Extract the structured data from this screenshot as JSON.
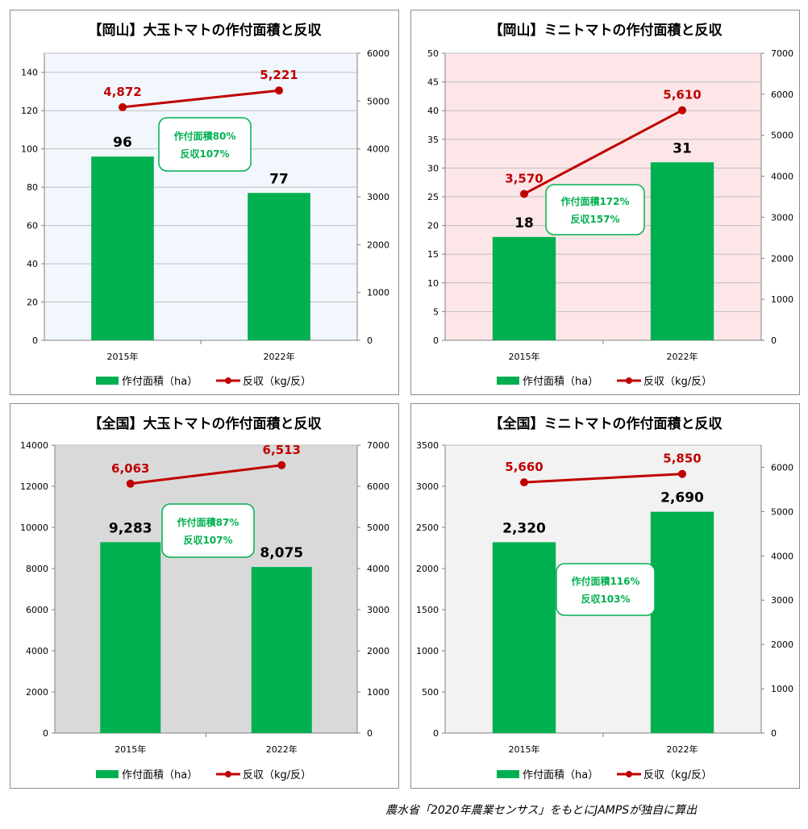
{
  "colors": {
    "bar": "#00b050",
    "line": "#c00000",
    "callout_border": "#00b050",
    "callout_text": "#00b050"
  },
  "source_note": "農水省「2020年農業センサス」をもとにJAMPSが独自に算出",
  "chart_data": [
    {
      "type": "bar+line",
      "title": "【岡山】大玉トマトの作付面積と反収",
      "categories": [
        "2015年",
        "2022年"
      ],
      "series": [
        {
          "name": "作付面積（ha）",
          "type": "bar",
          "axis": "left",
          "values": [
            96,
            77
          ],
          "labels": [
            "96",
            "77"
          ]
        },
        {
          "name": "反収（kg/反）",
          "type": "line",
          "axis": "right",
          "values": [
            4872,
            5221
          ],
          "labels": [
            "4,872",
            "5,221"
          ]
        }
      ],
      "y_left": {
        "min": 0,
        "max": 150,
        "ticks": [
          0,
          20,
          40,
          60,
          80,
          100,
          120,
          140
        ]
      },
      "y_right": {
        "min": 0,
        "max": 6000,
        "ticks": [
          0,
          1000,
          2000,
          3000,
          4000,
          5000,
          6000
        ]
      },
      "plot_background": "#f1f7fd",
      "grid": true,
      "legend": "bottom",
      "callout": [
        "作付面積80%",
        "反収107%"
      ]
    },
    {
      "type": "bar+line",
      "title": "【岡山】ミニトマトの作付面積と反収",
      "categories": [
        "2015年",
        "2022年"
      ],
      "series": [
        {
          "name": "作付面積（ha）",
          "type": "bar",
          "axis": "left",
          "values": [
            18,
            31
          ],
          "labels": [
            "18",
            "31"
          ]
        },
        {
          "name": "反収（kg/反）",
          "type": "line",
          "axis": "right",
          "values": [
            3570,
            5610
          ],
          "labels": [
            "3,570",
            "5,610"
          ]
        }
      ],
      "y_left": {
        "min": 0,
        "max": 50,
        "ticks": [
          0,
          5,
          10,
          15,
          20,
          25,
          30,
          35,
          40,
          45,
          50
        ]
      },
      "y_right": {
        "min": 0,
        "max": 7000,
        "ticks": [
          0,
          1000,
          2000,
          3000,
          4000,
          5000,
          6000,
          7000
        ]
      },
      "plot_background": "#fde6e8",
      "grid": true,
      "legend": "bottom",
      "callout": [
        "作付面積172%",
        "反収157%"
      ]
    },
    {
      "type": "bar+line",
      "title": "【全国】大玉トマトの作付面積と反収",
      "categories": [
        "2015年",
        "2022年"
      ],
      "series": [
        {
          "name": "作付面積（ha）",
          "type": "bar",
          "axis": "left",
          "values": [
            9283,
            8075
          ],
          "labels": [
            "9,283",
            "8,075"
          ]
        },
        {
          "name": "反収（kg/反）",
          "type": "line",
          "axis": "right",
          "values": [
            6063,
            6513
          ],
          "labels": [
            "6,063",
            "6,513"
          ]
        }
      ],
      "y_left": {
        "min": 0,
        "max": 14000,
        "ticks": [
          0,
          2000,
          4000,
          6000,
          8000,
          10000,
          12000,
          14000
        ]
      },
      "y_right": {
        "min": 0,
        "max": 7000,
        "ticks": [
          0,
          1000,
          2000,
          3000,
          4000,
          5000,
          6000,
          7000
        ]
      },
      "plot_background": "#d9d9d9",
      "grid": false,
      "legend": "bottom",
      "callout": [
        "作付面積87%",
        "反収107%"
      ]
    },
    {
      "type": "bar+line",
      "title": "【全国】ミニトマトの作付面積と反収",
      "categories": [
        "2015年",
        "2022年"
      ],
      "series": [
        {
          "name": "作付面積（ha）",
          "type": "bar",
          "axis": "left",
          "values": [
            2320,
            2690
          ],
          "labels": [
            "2,320",
            "2,690"
          ]
        },
        {
          "name": "反収（kg/反）",
          "type": "line",
          "axis": "right",
          "values": [
            5660,
            5850
          ],
          "labels": [
            "5,660",
            "5,850"
          ]
        }
      ],
      "y_left": {
        "min": 0,
        "max": 3500,
        "ticks": [
          0,
          500,
          1000,
          1500,
          2000,
          2500,
          3000,
          3500
        ]
      },
      "y_right": {
        "min": 0,
        "max": 6500,
        "ticks": [
          0,
          1000,
          2000,
          3000,
          4000,
          5000,
          6000
        ]
      },
      "plot_background": "#f2f2f2",
      "grid": false,
      "legend": "bottom",
      "callout": [
        "作付面積116%",
        "反収103%"
      ]
    }
  ]
}
